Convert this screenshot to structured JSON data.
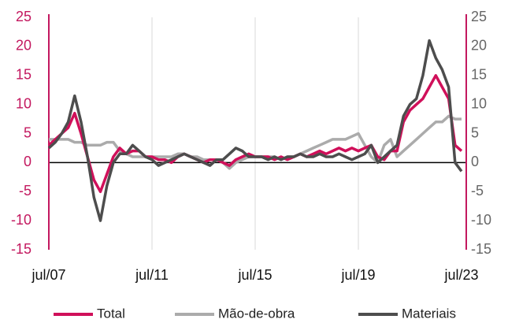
{
  "chart_data": {
    "type": "line",
    "categories": [
      "jul/07",
      null,
      null,
      null,
      null,
      null,
      null,
      null,
      null,
      null,
      null,
      null,
      null,
      null,
      null,
      null,
      "jul/11",
      null,
      null,
      null,
      null,
      null,
      null,
      null,
      null,
      null,
      null,
      null,
      null,
      null,
      null,
      null,
      "jul/15",
      null,
      null,
      null,
      null,
      null,
      null,
      null,
      null,
      null,
      null,
      null,
      null,
      null,
      null,
      null,
      "jul/19",
      null,
      null,
      null,
      null,
      null,
      null,
      null,
      null,
      null,
      null,
      null,
      null,
      null,
      null,
      null,
      "jul/23"
    ],
    "series": [
      {
        "name": "Total",
        "color": "#d0105a",
        "values": [
          3,
          4,
          5,
          6,
          8.5,
          5,
          1,
          -3,
          -5,
          -2,
          1,
          2.5,
          1.5,
          2,
          2,
          1,
          1,
          0.5,
          0.5,
          0,
          1,
          1.5,
          1,
          0.5,
          0,
          0.5,
          0.5,
          0,
          -0.5,
          0.5,
          1,
          1.5,
          1,
          1,
          1,
          0.5,
          1,
          0.5,
          1,
          1.5,
          1,
          1.5,
          2,
          1.5,
          2,
          2.5,
          2,
          2.5,
          2,
          2.5,
          3,
          1,
          0.5,
          2,
          2,
          7,
          9,
          10,
          11,
          13,
          15,
          13,
          11,
          3,
          2
        ]
      },
      {
        "name": "Mão-de-obra",
        "color": "#ababab",
        "values": [
          4,
          4,
          4,
          4,
          3.5,
          3.5,
          3,
          3,
          3,
          3.5,
          3.5,
          2,
          1.5,
          1,
          1,
          1,
          1,
          1,
          1,
          1,
          1.5,
          1.5,
          1,
          1,
          0.5,
          0.5,
          0.5,
          0,
          -1,
          0,
          0.5,
          1,
          1,
          1,
          1,
          1,
          0.5,
          1,
          1,
          1.5,
          2,
          2.5,
          3,
          3.5,
          4,
          4,
          4,
          4.5,
          5,
          3,
          1,
          0,
          3,
          4,
          1,
          2,
          3,
          4,
          5,
          6,
          7,
          7,
          8,
          7.5,
          7.5
        ]
      },
      {
        "name": "Materiais",
        "color": "#4d4d4d",
        "values": [
          2.5,
          3.5,
          5,
          7,
          11.5,
          7,
          1,
          -6,
          -10,
          -4,
          0,
          1.5,
          1.5,
          3,
          2,
          1,
          0.5,
          -0.5,
          0,
          0.5,
          1,
          1.5,
          1,
          0.5,
          0,
          -0.5,
          0.5,
          0.5,
          1.5,
          2.5,
          2,
          1,
          1,
          1,
          0.5,
          1,
          0.5,
          1,
          1,
          1.5,
          1,
          1,
          1.5,
          1,
          1,
          1.5,
          1,
          0.5,
          1,
          1.5,
          3,
          0,
          1,
          2,
          3,
          8,
          10,
          11,
          15,
          21,
          18,
          16,
          13,
          0,
          -1.5
        ]
      }
    ],
    "ylim": [
      -15,
      25
    ],
    "yticks": [
      -15,
      -10,
      -5,
      0,
      5,
      10,
      15,
      20,
      25
    ],
    "y2lim": [
      -15,
      25
    ],
    "y2ticks": [
      -15,
      -10,
      -5,
      0,
      5,
      10,
      15,
      20,
      25
    ],
    "legend": "bottom"
  }
}
